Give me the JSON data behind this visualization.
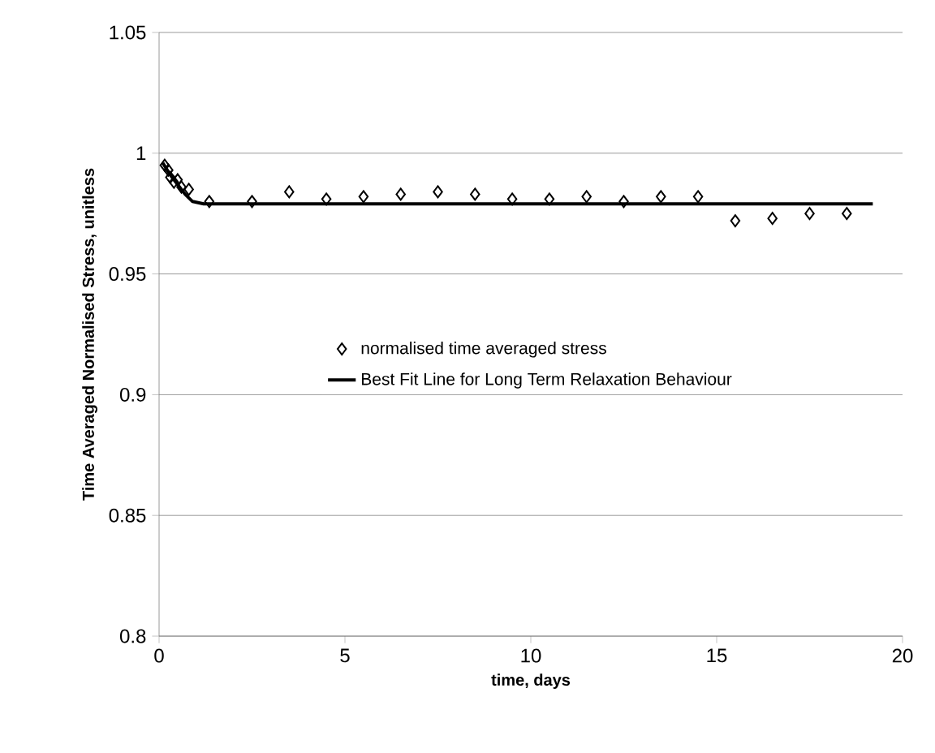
{
  "chart_data": {
    "type": "scatter",
    "xlabel": "time, days",
    "ylabel": "Time Averaged Normalised Stress, unitless",
    "xlim": [
      0,
      20
    ],
    "ylim": [
      0.8,
      1.05
    ],
    "xticks": [
      0,
      5,
      10,
      15,
      20
    ],
    "yticks": [
      0.8,
      0.85,
      0.9,
      0.95,
      1,
      1.05
    ],
    "grid": "y",
    "legend": "center",
    "series": [
      {
        "name": "normalised time averaged stress",
        "marker": "diamond",
        "color": "#000000",
        "x": [
          0.15,
          0.25,
          0.3,
          0.4,
          0.5,
          0.6,
          0.8,
          1.35,
          2.5,
          3.5,
          4.5,
          5.5,
          6.5,
          7.5,
          8.5,
          9.5,
          10.5,
          11.5,
          12.5,
          13.5,
          14.5,
          15.5,
          16.5,
          17.5,
          18.5
        ],
        "values": [
          0.995,
          0.993,
          0.99,
          0.988,
          0.989,
          0.986,
          0.985,
          0.98,
          0.98,
          0.984,
          0.981,
          0.982,
          0.983,
          0.984,
          0.983,
          0.981,
          0.981,
          0.982,
          0.98,
          0.982,
          0.982,
          0.972,
          0.973,
          0.975,
          0.975
        ]
      },
      {
        "name": "Best Fit Line for Long Term Relaxation Behaviour",
        "type": "line",
        "marker": "none",
        "line_style": "solid",
        "color": "#000000",
        "x": [
          0.1,
          0.3,
          0.5,
          0.7,
          0.9,
          1.2,
          19.2
        ],
        "values": [
          0.996,
          0.991,
          0.987,
          0.983,
          0.98,
          0.979,
          0.979
        ]
      }
    ]
  }
}
